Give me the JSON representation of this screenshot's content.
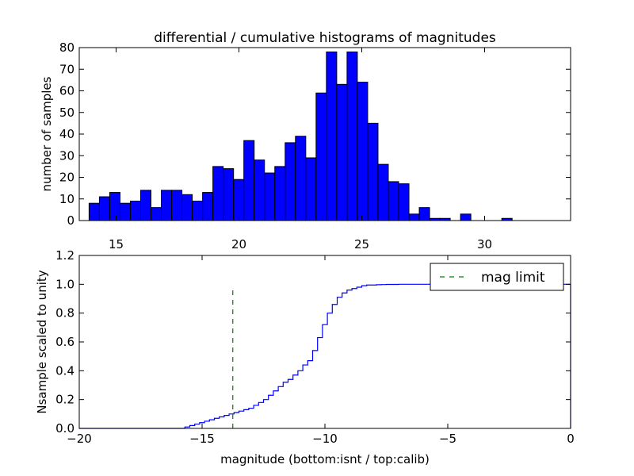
{
  "chart_data": [
    {
      "type": "bar",
      "title": "differential / cumulative histograms of magnitudes",
      "xlabel": "",
      "ylabel": "number of samples",
      "xlim": [
        13.5,
        33.5
      ],
      "ylim": [
        0,
        80
      ],
      "xticks": [
        15,
        20,
        25,
        30
      ],
      "yticks": [
        0,
        10,
        20,
        30,
        40,
        50,
        60,
        70,
        80
      ],
      "bin_start": 13.9,
      "bin_width": 0.42,
      "color": "#0000ff",
      "edge_color": "#000000",
      "values": [
        8,
        11,
        13,
        8,
        9,
        14,
        6,
        14,
        14,
        12,
        9,
        13,
        25,
        24,
        19,
        37,
        28,
        22,
        25,
        36,
        39,
        29,
        59,
        78,
        63,
        78,
        64,
        45,
        26,
        18,
        17,
        3,
        6,
        1,
        1,
        0,
        3,
        0,
        0,
        0,
        1,
        0,
        0,
        0,
        0,
        0
      ]
    },
    {
      "type": "line",
      "title": "",
      "xlabel": "magnitude (bottom:isnt / top:calib)",
      "ylabel": "Nsample scaled to unity",
      "xlim": [
        -20,
        0
      ],
      "ylim": [
        0,
        1.2
      ],
      "xticks": [
        -20,
        -15,
        -10,
        -5,
        0
      ],
      "yticks": [
        0.0,
        0.2,
        0.4,
        0.6,
        0.8,
        1.0,
        1.2
      ],
      "series": [
        {
          "name": "cumulative",
          "style": "step",
          "color": "#0000ff",
          "x": [
            -20,
            -15.7,
            -15.5,
            -15.3,
            -15.1,
            -14.9,
            -14.7,
            -14.5,
            -14.3,
            -14.1,
            -13.9,
            -13.7,
            -13.5,
            -13.3,
            -13.1,
            -12.9,
            -12.7,
            -12.5,
            -12.3,
            -12.1,
            -11.9,
            -11.7,
            -11.5,
            -11.3,
            -11.1,
            -10.9,
            -10.7,
            -10.5,
            -10.3,
            -10.1,
            -9.9,
            -9.7,
            -9.5,
            -9.3,
            -9.1,
            -8.9,
            -8.7,
            -8.5,
            -8.3,
            -8.1,
            -7.9,
            -7.7,
            -7.5,
            -7.0,
            -5.0,
            -2.0,
            -1.0,
            0
          ],
          "y": [
            0,
            0.01,
            0.02,
            0.03,
            0.04,
            0.05,
            0.06,
            0.07,
            0.08,
            0.09,
            0.1,
            0.11,
            0.12,
            0.13,
            0.14,
            0.16,
            0.18,
            0.2,
            0.23,
            0.26,
            0.29,
            0.32,
            0.34,
            0.37,
            0.4,
            0.44,
            0.47,
            0.54,
            0.63,
            0.72,
            0.8,
            0.86,
            0.91,
            0.94,
            0.96,
            0.97,
            0.98,
            0.99,
            0.995,
            0.995,
            0.997,
            0.998,
            0.999,
            1.0,
            1.0,
            1.0,
            1.0,
            1.0
          ]
        },
        {
          "name": "mag limit",
          "style": "dashed",
          "color": "#008000",
          "x": [
            -13.75,
            -13.75
          ],
          "y": [
            0,
            0.97
          ]
        }
      ],
      "legend": {
        "entries": [
          "mag limit"
        ],
        "placement": "top-right"
      }
    }
  ]
}
